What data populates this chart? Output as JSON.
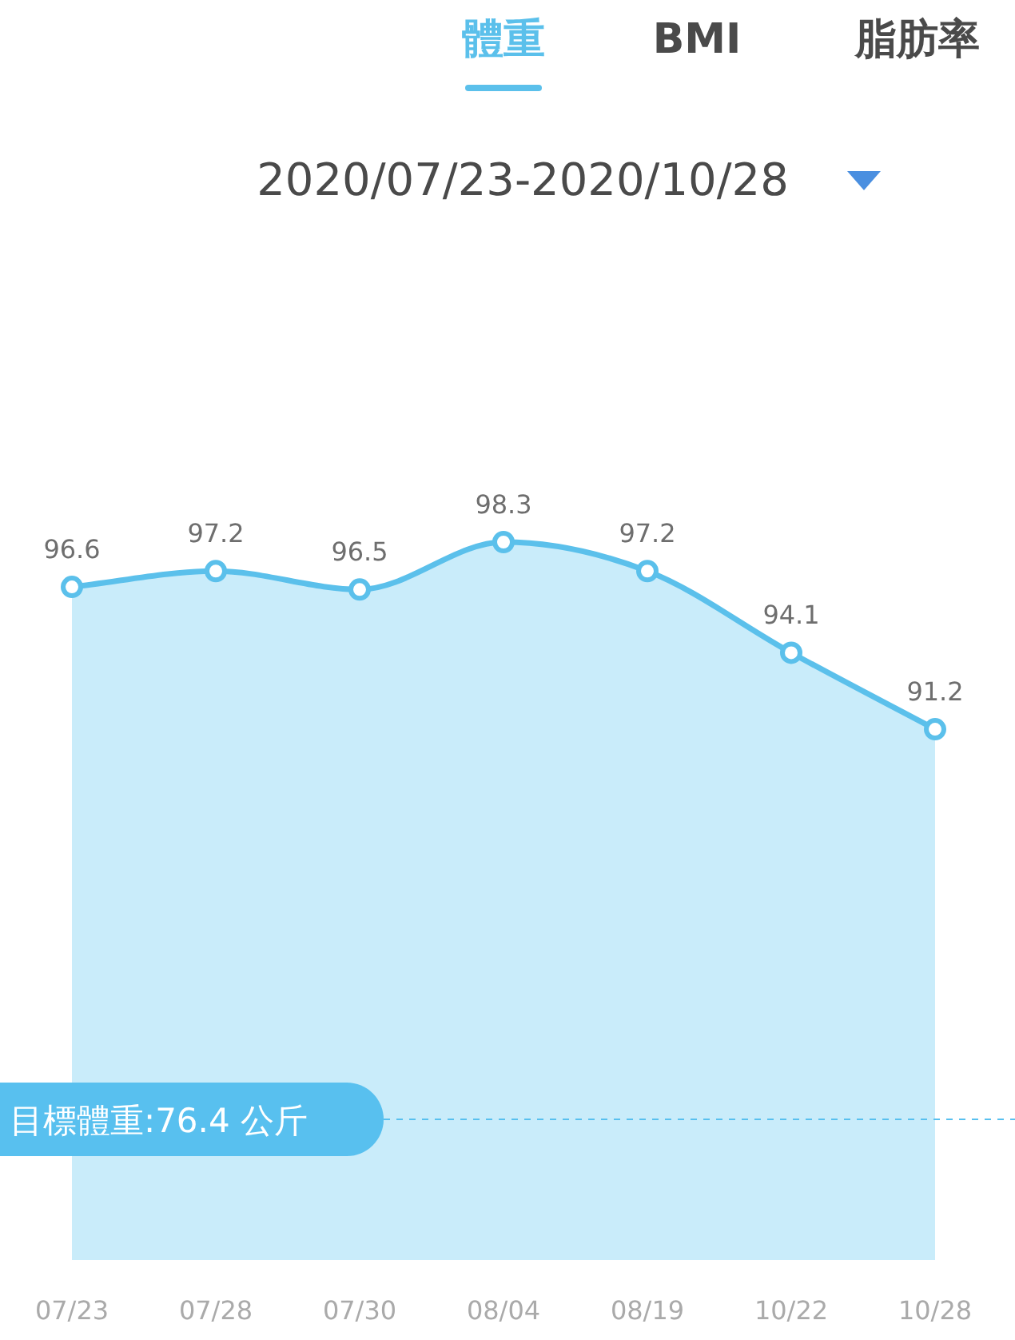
{
  "chart_data": {
    "type": "area",
    "title": "2020/07/23-2020/10/28",
    "annotations": [
      "體重",
      "BMI",
      "脂肪率"
    ],
    "categories": [
      "07/23",
      "07/28",
      "07/30",
      "08/04",
      "08/19",
      "10/22",
      "10/28"
    ],
    "series": [
      {
        "color": "#5bc0eb",
        "values": [
          96.6,
          97.2,
          96.5,
          98.3,
          97.2,
          94.1,
          91.2
        ]
      }
    ],
    "data_labels": true,
    "marker": "circle",
    "ref_lines": [
      {
        "axis": "y",
        "value": 76.4,
        "label": "目標體重:76.4 公斤",
        "color": "#58c0ef",
        "line_style": "dashed"
      }
    ]
  }
}
